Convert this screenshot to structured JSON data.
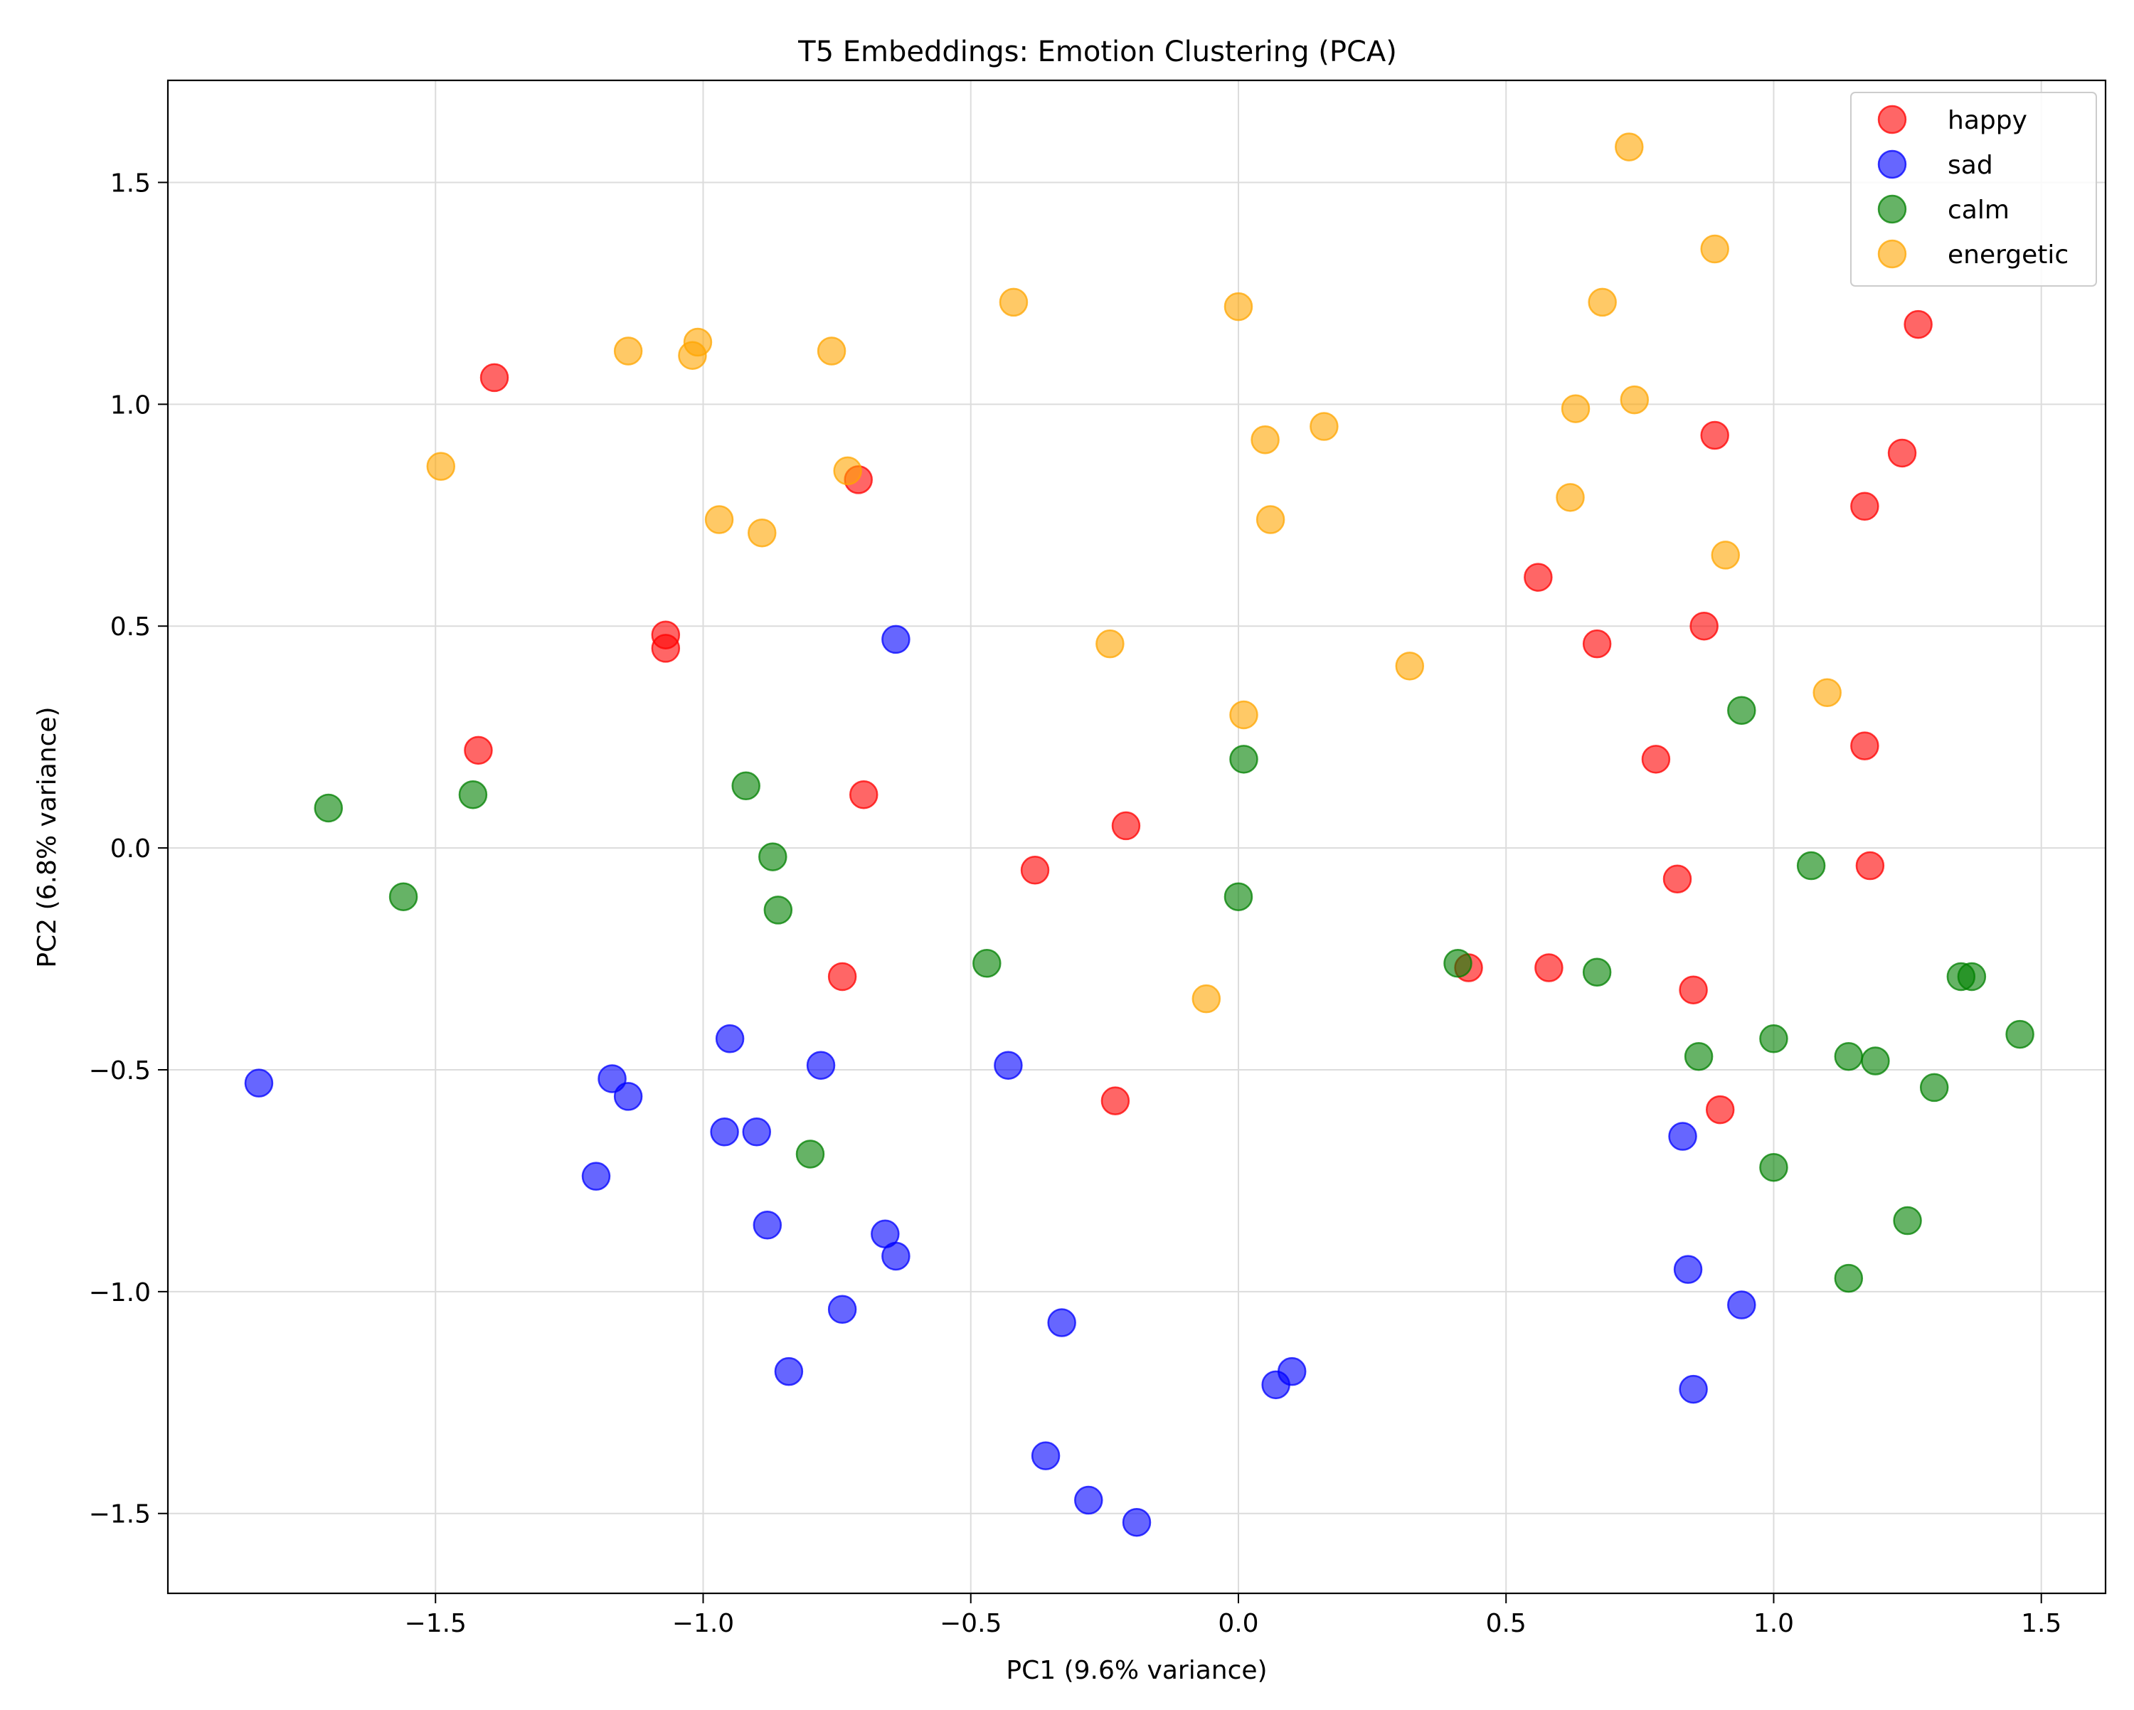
{
  "chart_data": {
    "type": "scatter",
    "title": "T5 Embeddings: Emotion Clustering (PCA)",
    "xlabel": "PC1 (9.6% variance)",
    "ylabel": "PC2 (6.8% variance)",
    "xlim": [
      -2.0,
      1.62
    ],
    "ylim": [
      -1.68,
      1.73
    ],
    "xticks": [
      -1.5,
      -1.0,
      -0.5,
      0.0,
      0.5,
      1.0,
      1.5
    ],
    "xtick_labels": [
      "−1.5",
      "−1.0",
      "−0.5",
      "0.0",
      "0.5",
      "1.0",
      "1.5"
    ],
    "yticks": [
      -1.5,
      -1.0,
      -0.5,
      0.0,
      0.5,
      1.0,
      1.5
    ],
    "ytick_labels": [
      "−1.5",
      "−1.0",
      "−0.5",
      "0.0",
      "0.5",
      "1.0",
      "1.5"
    ],
    "grid": true,
    "legend_position": "top-right",
    "series": [
      {
        "name": "happy",
        "color": "#ff0000",
        "points": [
          [
            -1.39,
            1.06
          ],
          [
            -0.71,
            0.83
          ],
          [
            -1.07,
            0.48
          ],
          [
            -1.07,
            0.45
          ],
          [
            -1.42,
            0.22
          ],
          [
            -0.7,
            0.12
          ],
          [
            -0.21,
            0.05
          ],
          [
            -0.38,
            -0.05
          ],
          [
            -0.74,
            -0.29
          ],
          [
            -0.23,
            -0.57
          ],
          [
            0.43,
            -0.27
          ],
          [
            0.58,
            -0.27
          ],
          [
            0.56,
            0.61
          ],
          [
            0.67,
            0.46
          ],
          [
            0.87,
            0.5
          ],
          [
            0.89,
            0.93
          ],
          [
            0.78,
            0.2
          ],
          [
            0.82,
            -0.07
          ],
          [
            0.85,
            -0.32
          ],
          [
            0.9,
            -0.59
          ],
          [
            1.17,
            0.77
          ],
          [
            1.24,
            0.89
          ],
          [
            1.27,
            1.18
          ],
          [
            1.17,
            0.23
          ],
          [
            1.18,
            -0.04
          ]
        ]
      },
      {
        "name": "sad",
        "color": "#0000ff",
        "points": [
          [
            -1.83,
            -0.53
          ],
          [
            -1.17,
            -0.52
          ],
          [
            -1.14,
            -0.56
          ],
          [
            -1.2,
            -0.74
          ],
          [
            -0.95,
            -0.43
          ],
          [
            -0.96,
            -0.64
          ],
          [
            -0.9,
            -0.64
          ],
          [
            -0.88,
            -0.85
          ],
          [
            -0.78,
            -0.49
          ],
          [
            -0.64,
            0.47
          ],
          [
            -0.66,
            -0.87
          ],
          [
            -0.64,
            -0.92
          ],
          [
            -0.74,
            -1.04
          ],
          [
            -0.84,
            -1.18
          ],
          [
            -0.43,
            -0.49
          ],
          [
            -0.33,
            -1.07
          ],
          [
            -0.36,
            -1.37
          ],
          [
            -0.28,
            -1.47
          ],
          [
            -0.19,
            -1.52
          ],
          [
            0.07,
            -1.21
          ],
          [
            0.1,
            -1.18
          ],
          [
            0.83,
            -0.65
          ],
          [
            0.84,
            -0.95
          ],
          [
            0.85,
            -1.22
          ],
          [
            0.94,
            -1.03
          ]
        ]
      },
      {
        "name": "calm",
        "color": "#008000",
        "points": [
          [
            -1.7,
            0.09
          ],
          [
            -1.56,
            -0.11
          ],
          [
            -1.43,
            0.12
          ],
          [
            -0.92,
            0.14
          ],
          [
            -0.87,
            -0.02
          ],
          [
            -0.86,
            -0.14
          ],
          [
            -0.8,
            -0.69
          ],
          [
            -0.47,
            -0.26
          ],
          [
            0.0,
            -0.11
          ],
          [
            0.01,
            0.2
          ],
          [
            0.41,
            -0.26
          ],
          [
            0.67,
            -0.28
          ],
          [
            0.86,
            -0.47
          ],
          [
            0.94,
            0.31
          ],
          [
            1.0,
            -0.43
          ],
          [
            1.0,
            -0.72
          ],
          [
            1.07,
            -0.04
          ],
          [
            1.14,
            -0.47
          ],
          [
            1.14,
            -0.97
          ],
          [
            1.19,
            -0.48
          ],
          [
            1.25,
            -0.84
          ],
          [
            1.3,
            -0.54
          ],
          [
            1.35,
            -0.29
          ],
          [
            1.37,
            -0.29
          ],
          [
            1.46,
            -0.42
          ]
        ]
      },
      {
        "name": "energetic",
        "color": "#ffa500",
        "points": [
          [
            -1.49,
            0.86
          ],
          [
            -1.14,
            1.12
          ],
          [
            -1.01,
            1.14
          ],
          [
            -1.02,
            1.11
          ],
          [
            -0.97,
            0.74
          ],
          [
            -0.89,
            0.71
          ],
          [
            -0.76,
            1.12
          ],
          [
            -0.73,
            0.85
          ],
          [
            -0.42,
            1.23
          ],
          [
            -0.24,
            0.46
          ],
          [
            -0.06,
            -0.34
          ],
          [
            0.0,
            1.22
          ],
          [
            0.01,
            0.3
          ],
          [
            0.05,
            0.92
          ],
          [
            0.06,
            0.74
          ],
          [
            0.16,
            0.95
          ],
          [
            0.32,
            0.41
          ],
          [
            0.62,
            0.79
          ],
          [
            0.63,
            0.99
          ],
          [
            0.68,
            1.23
          ],
          [
            0.73,
            1.58
          ],
          [
            0.74,
            1.01
          ],
          [
            0.89,
            1.35
          ],
          [
            0.91,
            0.66
          ],
          [
            1.1,
            0.35
          ]
        ]
      }
    ]
  }
}
